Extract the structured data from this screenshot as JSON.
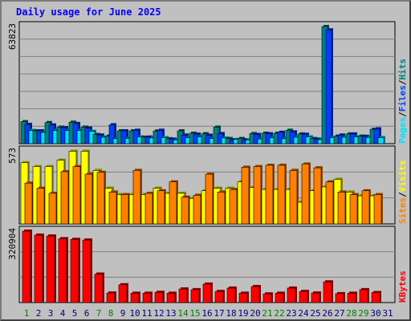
{
  "title": "Daily usage for June 2025",
  "colors": {
    "background": "#c0c0c0",
    "title": "#0000ff",
    "hits": "#008080",
    "files": "#0040ff",
    "pages": "#00e0ff",
    "visits": "#ffff00",
    "sites": "#ff8000",
    "kbytes": "#ff0000",
    "weekend": "#008000",
    "weekday": "#000080"
  },
  "chart_data": {
    "type": "bar",
    "categories": [
      "1",
      "2",
      "3",
      "4",
      "5",
      "6",
      "7",
      "8",
      "9",
      "10",
      "11",
      "12",
      "13",
      "14",
      "15",
      "16",
      "17",
      "18",
      "19",
      "20",
      "21",
      "22",
      "23",
      "24",
      "25",
      "26",
      "27",
      "28",
      "29",
      "30",
      "31"
    ],
    "weekend_days": [
      "1",
      "7",
      "8",
      "14",
      "15",
      "21",
      "22",
      "28",
      "29"
    ],
    "panels": [
      {
        "name": "top",
        "ymax_label": "63823",
        "ymax": 63823,
        "legend": [
          "Pages",
          "Files",
          "Hits"
        ],
        "series": [
          {
            "name": "Hits",
            "values": [
              12000,
              7000,
              11500,
              9000,
              11700,
              9000,
              5000,
              4100,
              7000,
              7000,
              3500,
              6900,
              2700,
              7000,
              5700,
              5400,
              9000,
              2800,
              2800,
              5500,
              5700,
              5700,
              7300,
              5300,
              2800,
              63823,
              4100,
              5300,
              4100,
              7800,
              0
            ]
          },
          {
            "name": "Files",
            "values": [
              10500,
              7000,
              10200,
              8700,
              11000,
              8500,
              4700,
              10300,
              7000,
              7300,
              3600,
              7300,
              2500,
              4700,
              5200,
              4600,
              5500,
              2100,
              2100,
              5000,
              5400,
              6200,
              6400,
              5100,
              2500,
              62000,
              4700,
              5300,
              4000,
              8100,
              0
            ]
          },
          {
            "name": "Pages",
            "values": [
              7200,
              6100,
              7200,
              7100,
              7200,
              6700,
              3500,
              2700,
              2900,
              3700,
              3100,
              3300,
              2000,
              3300,
              3700,
              2800,
              3100,
              2300,
              2000,
              2500,
              3200,
              2700,
              3500,
              3700,
              2200,
              3300,
              3500,
              3700,
              3400,
              3300,
              0
            ]
          }
        ]
      },
      {
        "name": "middle",
        "ymax_label": "573",
        "ymax": 573,
        "legend": [
          "Sites",
          "Visits"
        ],
        "series": [
          {
            "name": "Visits",
            "values": [
              480,
              450,
              450,
              500,
              570,
              570,
              420,
              280,
              230,
              230,
              230,
              280,
              240,
              240,
              200,
              260,
              280,
              280,
              330,
              285,
              270,
              270,
              270,
              170,
              260,
              290,
              350,
              250,
              220,
              220,
              0
            ]
          },
          {
            "name": "Sites",
            "values": [
              320,
              280,
              240,
              410,
              450,
              390,
              405,
              250,
              230,
              420,
              240,
              260,
              330,
              210,
              225,
              390,
              250,
              270,
              445,
              450,
              460,
              460,
              420,
              470,
              440,
              330,
              250,
              230,
              260,
              230,
              0
            ]
          }
        ]
      },
      {
        "name": "bottom",
        "ymax_label": "320904",
        "ymax": 320904,
        "legend": [
          "KBytes"
        ],
        "series": [
          {
            "name": "KBytes",
            "values": [
              320904,
              303000,
              299000,
              287000,
              284000,
              281000,
              128000,
              43000,
              80000,
              42000,
              42000,
              46000,
              42000,
              61000,
              58000,
              83000,
              50000,
              65000,
              42000,
              72000,
              39000,
              42000,
              65000,
              50000,
              43000,
              93000,
              40000,
              42000,
              58000,
              45000,
              0
            ]
          }
        ]
      }
    ]
  }
}
